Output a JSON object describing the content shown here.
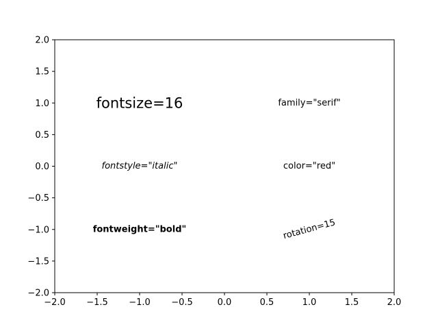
{
  "chart_data": {
    "type": "scatter",
    "title": "",
    "xlabel": "",
    "ylabel": "",
    "xlim": [
      -2.0,
      2.0
    ],
    "ylim": [
      -2.0,
      2.0
    ],
    "grid": false,
    "x_ticks": [
      {
        "value": -2.0,
        "label": "−2.0"
      },
      {
        "value": -1.5,
        "label": "−1.5"
      },
      {
        "value": -1.0,
        "label": "−1.0"
      },
      {
        "value": -0.5,
        "label": "−0.5"
      },
      {
        "value": 0.0,
        "label": "0.0"
      },
      {
        "value": 0.5,
        "label": "0.5"
      },
      {
        "value": 1.0,
        "label": "1.0"
      },
      {
        "value": 1.5,
        "label": "1.5"
      },
      {
        "value": 2.0,
        "label": "2.0"
      }
    ],
    "y_ticks": [
      {
        "value": -2.0,
        "label": "−2.0"
      },
      {
        "value": -1.5,
        "label": "−1.5"
      },
      {
        "value": -1.0,
        "label": "−1.0"
      },
      {
        "value": -0.5,
        "label": "−0.5"
      },
      {
        "value": 0.0,
        "label": "0.0"
      },
      {
        "value": 0.5,
        "label": "0.5"
      },
      {
        "value": 1.0,
        "label": "1.0"
      },
      {
        "value": 1.5,
        "label": "1.5"
      },
      {
        "value": 2.0,
        "label": "2.0"
      }
    ],
    "annotations": [
      {
        "text": "fontsize=16",
        "x": -1.0,
        "y": 1.0,
        "style": "fontsize"
      },
      {
        "text": "family=\"serif\"",
        "x": 1.0,
        "y": 1.0,
        "style": "serif"
      },
      {
        "text": "fontstyle=\"italic\"",
        "x": -1.0,
        "y": 0.0,
        "style": "italic"
      },
      {
        "text": "color=\"red\"",
        "x": 1.0,
        "y": 0.0,
        "style": "red",
        "color": "#ff0000"
      },
      {
        "text": "fontweight=\"bold\"",
        "x": -1.0,
        "y": -1.0,
        "style": "bold"
      },
      {
        "text": "rotation=15",
        "x": 1.0,
        "y": -1.0,
        "style": "rotation",
        "rotation_deg": 15
      }
    ]
  }
}
